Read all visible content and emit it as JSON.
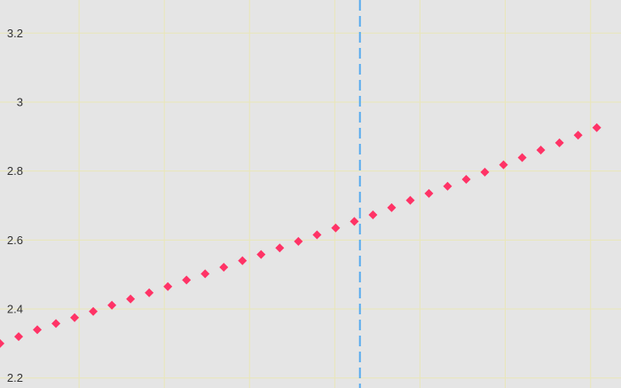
{
  "chart_data": {
    "type": "scatter",
    "title": "",
    "xlabel": "",
    "ylabel": "",
    "ylim": [
      2.171,
      3.296
    ],
    "xlim": [
      0,
      33.3
    ],
    "y_ticks": [
      "2.2",
      "2.4",
      "2.6",
      "2.8",
      "3",
      "3.2"
    ],
    "x_gridlines": [
      4.24,
      8.81,
      13.38,
      17.95,
      22.52,
      27.09,
      31.67
    ],
    "grid": true,
    "legend": "none",
    "reference_line": {
      "x": 19.3,
      "style": "dashed"
    },
    "series": [
      {
        "marker": "diamond",
        "x": [
          0,
          1,
          2,
          3,
          4,
          5,
          6,
          7,
          8,
          9,
          10,
          11,
          12,
          13,
          14,
          15,
          16,
          17,
          18,
          19,
          20,
          21,
          22,
          23,
          24,
          25,
          26,
          27,
          28,
          29,
          30,
          31,
          32
        ],
        "values": [
          2.3,
          2.32,
          2.34,
          2.358,
          2.375,
          2.393,
          2.411,
          2.429,
          2.447,
          2.465,
          2.484,
          2.502,
          2.521,
          2.54,
          2.558,
          2.577,
          2.596,
          2.615,
          2.635,
          2.654,
          2.673,
          2.694,
          2.715,
          2.735,
          2.756,
          2.776,
          2.797,
          2.818,
          2.839,
          2.861,
          2.882,
          2.904,
          2.926
        ]
      }
    ]
  },
  "colors": {
    "background": "#e5e5e5",
    "grid": "#e9e6b8",
    "points": "#ff3366",
    "reference_line": "#55aaee",
    "tick_text": "#333333"
  }
}
